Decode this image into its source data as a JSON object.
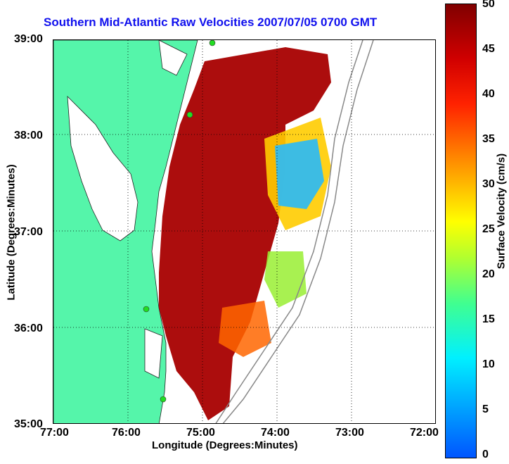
{
  "title": "Southern Mid-Atlantic Raw Velocities 2007/07/05 0700 GMT",
  "x_axis": {
    "label": "Longitude (Degrees:Minutes)",
    "ticks": [
      "77:00",
      "76:00",
      "75:00",
      "74:00",
      "73:00",
      "72:00"
    ]
  },
  "y_axis": {
    "label": "Latitude (Degrees:Minutes)",
    "ticks": [
      "39:00",
      "38:00",
      "37:00",
      "36:00",
      "35:00"
    ]
  },
  "colorbar": {
    "label": "Surface Velocity (cm/s)",
    "ticks": [
      "50",
      "45",
      "40",
      "35",
      "30",
      "25",
      "20",
      "15",
      "10",
      "5",
      "0"
    ]
  },
  "colors": {
    "land": "#55f5aa",
    "title": "#1010ee",
    "station": "#22dd22",
    "high_speed": "#8b0000",
    "low_speed": "#1e90ff"
  }
}
